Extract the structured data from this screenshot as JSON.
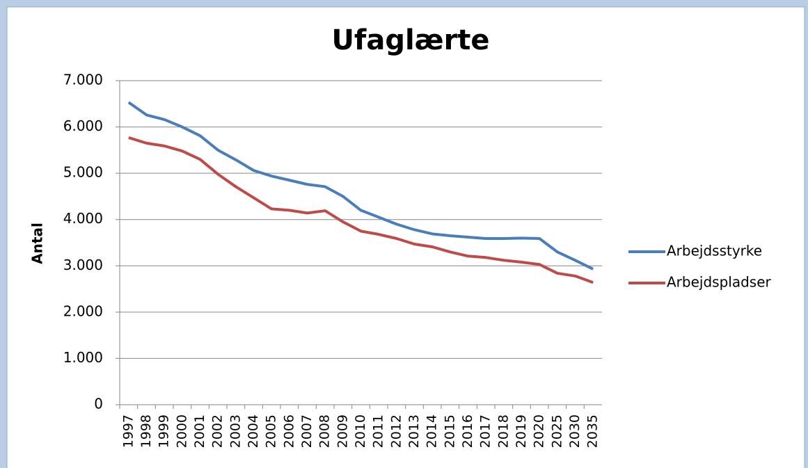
{
  "chart_data": {
    "type": "line",
    "title": "Ufaglærte",
    "y_label": "Antal",
    "categories": [
      "1997",
      "1998",
      "1999",
      "2000",
      "2001",
      "2002",
      "2003",
      "2004",
      "2005",
      "2006",
      "2007",
      "2008",
      "2009",
      "2010",
      "2011",
      "2012",
      "2013",
      "2014",
      "2015",
      "2016",
      "2017",
      "2018",
      "2019",
      "2020",
      "2025",
      "2030",
      "2035"
    ],
    "series": [
      {
        "name": "Arbejdsstyrke",
        "color": "#4a7ebb",
        "values": [
          6530,
          6260,
          6160,
          6000,
          5810,
          5500,
          5290,
          5060,
          4940,
          4850,
          4760,
          4710,
          4500,
          4200,
          4050,
          3900,
          3780,
          3690,
          3650,
          3620,
          3590,
          3590,
          3600,
          3590,
          3300,
          3120,
          2930
        ]
      },
      {
        "name": "Arbejdspladser",
        "color": "#be4b48",
        "values": [
          5770,
          5650,
          5590,
          5480,
          5300,
          4980,
          4710,
          4470,
          4230,
          4200,
          4140,
          4190,
          3950,
          3750,
          3680,
          3590,
          3470,
          3410,
          3300,
          3210,
          3180,
          3120,
          3080,
          3030,
          2840,
          2780,
          2640
        ]
      }
    ],
    "ylim": [
      0,
      7000
    ],
    "yticks": [
      0,
      {
        "value": 1000,
        "label": "1.000"
      },
      {
        "value": 2000,
        "label": "2.000"
      },
      {
        "value": 3000,
        "label": "3.000"
      },
      {
        "value": 4000,
        "label": "4.000"
      },
      {
        "value": 5000,
        "label": "5.000"
      },
      {
        "value": 6000,
        "label": "6.000"
      },
      {
        "value": 7000,
        "label": "7.000"
      }
    ],
    "grid": true,
    "legend": "right"
  }
}
